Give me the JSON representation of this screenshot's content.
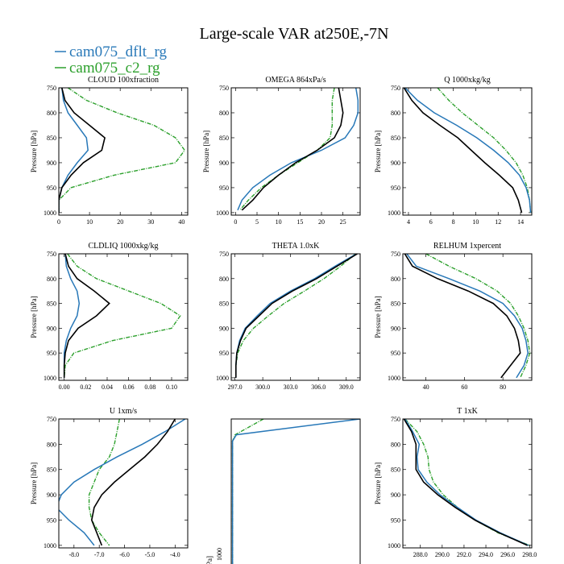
{
  "figure": {
    "title": "Large-scale VAR at250E,-7N",
    "legend": [
      {
        "label": "cam075_dflt_rg",
        "color": "#2878b8"
      },
      {
        "label": "cam075_c2_rg",
        "color": "#2ca02c"
      }
    ],
    "colors": {
      "black": "#000000",
      "blue": "#2878b8",
      "green": "#2ca02c"
    }
  },
  "chart_data": [
    {
      "type": "line",
      "title": "CLOUD  100xfraction",
      "ylabel": "Pressure [hPa]",
      "ylim": [
        750,
        1005
      ],
      "yticks": [
        750,
        800,
        850,
        900,
        950,
        1000
      ],
      "xlim": [
        0,
        42
      ],
      "xticks": [
        0,
        10,
        20,
        30,
        40
      ],
      "xticklabels": [
        "0",
        "10",
        "20",
        "30",
        "40"
      ],
      "y": [
        750,
        775,
        800,
        825,
        850,
        875,
        900,
        925,
        950,
        975,
        1000
      ],
      "series": [
        {
          "color": "black",
          "values": [
            1,
            2,
            5,
            10,
            15,
            14,
            8,
            4,
            1,
            0,
            0
          ]
        },
        {
          "color": "blue",
          "values": [
            1,
            1.5,
            3,
            6,
            9,
            9.5,
            6,
            3,
            1,
            0,
            0
          ]
        },
        {
          "color": "green",
          "values": [
            3,
            9,
            19,
            31,
            38,
            41,
            38,
            18,
            4,
            0,
            0
          ]
        }
      ]
    },
    {
      "type": "line",
      "title": "OMEGA  864xPa/s",
      "ylabel": "Pressure [hPa]",
      "ylim": [
        750,
        1005
      ],
      "yticks": [
        750,
        800,
        850,
        900,
        950,
        1000
      ],
      "xlim": [
        -1,
        29
      ],
      "xticks": [
        0,
        5,
        10,
        15,
        20,
        25
      ],
      "xticklabels": [
        "0",
        "5",
        "10",
        "15",
        "20",
        "25"
      ],
      "y": [
        750,
        775,
        800,
        825,
        850,
        875,
        900,
        925,
        950,
        975,
        995
      ],
      "series": [
        {
          "color": "black",
          "values": [
            24,
            24.5,
            25,
            24.5,
            23,
            19,
            14,
            10,
            6.5,
            4,
            1.5
          ]
        },
        {
          "color": "blue",
          "values": [
            28,
            28.5,
            28.5,
            27.5,
            25.5,
            20,
            13,
            8,
            4,
            1.5,
            0.5
          ]
        },
        {
          "color": "green",
          "values": [
            23,
            22.5,
            22.5,
            22.5,
            22,
            19,
            14.5,
            10,
            6,
            3,
            1
          ]
        }
      ]
    },
    {
      "type": "line",
      "title": "Q  1000xkg/kg",
      "ylabel": "Pressure [hPa]",
      "ylim": [
        750,
        1005
      ],
      "yticks": [
        750,
        800,
        850,
        900,
        950,
        1000
      ],
      "xlim": [
        3.5,
        15
      ],
      "xticks": [
        4,
        6,
        8,
        10,
        12,
        14
      ],
      "xticklabels": [
        "4",
        "6",
        "8",
        "10",
        "12",
        "14"
      ],
      "y": [
        750,
        775,
        800,
        825,
        850,
        875,
        900,
        925,
        950,
        975,
        1000
      ],
      "series": [
        {
          "color": "black",
          "values": [
            3.6,
            4.3,
            5.3,
            6.8,
            8.4,
            9.6,
            10.8,
            12.1,
            13.3,
            13.8,
            14.1
          ]
        },
        {
          "color": "blue",
          "values": [
            3.7,
            4.8,
            6.3,
            8.3,
            10.1,
            11.6,
            12.9,
            13.9,
            14.5,
            14.8,
            14.9
          ]
        },
        {
          "color": "green",
          "values": [
            6.6,
            7.6,
            8.8,
            10.2,
            11.6,
            12.7,
            13.6,
            14.2,
            14.6,
            14.8,
            14.9
          ]
        }
      ]
    },
    {
      "type": "line",
      "title": "CLDLIQ  1000xkg/kg",
      "ylabel": "Pressure [hPa]",
      "ylim": [
        750,
        1005
      ],
      "yticks": [
        750,
        800,
        850,
        900,
        950,
        1000
      ],
      "xlim": [
        -0.005,
        0.115
      ],
      "xticks": [
        0,
        0.02,
        0.04,
        0.06,
        0.08,
        0.1
      ],
      "xticklabels": [
        "0.00",
        "0.02",
        "0.04",
        "0.06",
        "0.08",
        "0.10"
      ],
      "y": [
        750,
        775,
        800,
        825,
        850,
        875,
        900,
        925,
        950,
        975,
        1000
      ],
      "series": [
        {
          "color": "black",
          "values": [
            0.001,
            0.004,
            0.012,
            0.028,
            0.042,
            0.03,
            0.013,
            0.004,
            0.001,
            0,
            0
          ]
        },
        {
          "color": "blue",
          "values": [
            0.001,
            0.002,
            0.006,
            0.012,
            0.014,
            0.012,
            0.006,
            0.002,
            0,
            0,
            0
          ]
        },
        {
          "color": "green",
          "values": [
            0.003,
            0.012,
            0.03,
            0.06,
            0.09,
            0.108,
            0.1,
            0.045,
            0.009,
            0.001,
            0
          ]
        }
      ]
    },
    {
      "type": "line",
      "title": "THETA  1.0xK",
      "ylabel": "",
      "ylim": [
        750,
        1005
      ],
      "yticks": [
        750,
        800,
        850,
        900,
        950,
        1000
      ],
      "xlim": [
        296.6,
        310.5
      ],
      "xticks": [
        297,
        300,
        303,
        306,
        309
      ],
      "xticklabels": [
        "297.0",
        "300.0",
        "303.0",
        "306.0",
        "309.0"
      ],
      "y": [
        750,
        775,
        800,
        825,
        850,
        875,
        900,
        925,
        950,
        975,
        1000
      ],
      "series": [
        {
          "color": "black",
          "values": [
            310.2,
            308,
            305.8,
            303.2,
            301,
            299.6,
            298.2,
            297.6,
            297.2,
            297.1,
            297.1
          ]
        },
        {
          "color": "blue",
          "values": [
            310.1,
            307.8,
            305.6,
            303,
            300.8,
            299.4,
            298.1,
            297.5,
            297.2,
            297.1,
            297.1
          ]
        },
        {
          "color": "green",
          "values": [
            310,
            308.4,
            306.6,
            304.5,
            302.3,
            300.6,
            299,
            297.9,
            297.3,
            297.1,
            297.1
          ]
        }
      ]
    },
    {
      "type": "line",
      "title": "RELHUM  1xpercent",
      "ylabel": "Pressure [hPa]",
      "ylim": [
        750,
        1005
      ],
      "yticks": [
        750,
        800,
        850,
        900,
        950,
        1000
      ],
      "xlim": [
        28,
        95
      ],
      "xticks": [
        40,
        60,
        80
      ],
      "xticklabels": [
        "40",
        "60",
        "80"
      ],
      "y": [
        750,
        775,
        800,
        825,
        850,
        875,
        900,
        925,
        950,
        975,
        1000
      ],
      "series": [
        {
          "color": "black",
          "values": [
            29,
            33,
            46,
            62,
            75,
            82,
            86,
            88,
            89,
            84,
            79
          ]
        },
        {
          "color": "blue",
          "values": [
            30,
            35,
            52,
            68,
            80,
            86,
            90,
            92,
            93,
            91,
            87
          ]
        },
        {
          "color": "green",
          "values": [
            40,
            52,
            66,
            77,
            84,
            88,
            91,
            93,
            94,
            92,
            89
          ]
        }
      ]
    },
    {
      "type": "line",
      "title": "U  1xm/s",
      "ylabel": "Pressure [hPa]",
      "ylim": [
        750,
        1005
      ],
      "yticks": [
        750,
        800,
        850,
        900,
        950,
        1000
      ],
      "xlim": [
        -8.6,
        -3.5
      ],
      "xticks": [
        -8,
        -7,
        -6,
        -5,
        -4
      ],
      "xticklabels": [
        "-8.0",
        "-7.0",
        "-6.0",
        "-5.0",
        "-4.0"
      ],
      "y": [
        750,
        775,
        800,
        825,
        850,
        875,
        900,
        925,
        950,
        975,
        1000
      ],
      "series": [
        {
          "color": "black",
          "values": [
            -4,
            -4.3,
            -4.7,
            -5.2,
            -5.8,
            -6.4,
            -6.9,
            -7.2,
            -7.3,
            -7.1,
            -6.9
          ]
        },
        {
          "color": "blue",
          "values": [
            -3.6,
            -4.4,
            -5.3,
            -6.3,
            -7.2,
            -8,
            -8.5,
            -8.7,
            -8.2,
            -7.6,
            -7.2
          ]
        },
        {
          "color": "green",
          "values": [
            -6.2,
            -6.3,
            -6.4,
            -6.6,
            -7,
            -7.2,
            -7.4,
            -7.4,
            -7.3,
            -7,
            -6.6
          ]
        }
      ]
    },
    {
      "type": "line",
      "title": "",
      "ylabel": "e [hPa]",
      "ylim": [
        750,
        1005
      ],
      "xlim": [
        0,
        1
      ],
      "y": [
        750,
        775,
        785,
        1005
      ],
      "series": [
        {
          "color": "blue",
          "values": [
            1,
            0.04,
            0.01,
            0.01
          ]
        },
        {
          "color": "green",
          "values": [
            0.25,
            0.03,
            0.01,
            0.01
          ]
        }
      ],
      "cropped_tick_label": "1000"
    },
    {
      "type": "line",
      "title": "T  1xK",
      "ylabel": "Pressure [hPa]",
      "ylim": [
        750,
        1005
      ],
      "yticks": [
        750,
        800,
        850,
        900,
        950,
        1000
      ],
      "xlim": [
        286.4,
        298.2
      ],
      "xticks": [
        288,
        290,
        292,
        294,
        296,
        298
      ],
      "xticklabels": [
        "288.0",
        "290.0",
        "292.0",
        "294.0",
        "296.0",
        "298.0"
      ],
      "y": [
        750,
        775,
        800,
        825,
        850,
        875,
        900,
        925,
        950,
        975,
        1000
      ],
      "series": [
        {
          "color": "black",
          "values": [
            286.5,
            287.2,
            287.6,
            287.6,
            287.6,
            288.3,
            289.6,
            291.2,
            293,
            295.2,
            297.8
          ]
        },
        {
          "color": "blue",
          "values": [
            286.6,
            287.3,
            287.9,
            287.7,
            287.8,
            288.6,
            289.8,
            291.4,
            293.1,
            295.3,
            297.9
          ]
        },
        {
          "color": "green",
          "values": [
            286.6,
            287.7,
            288.3,
            288.7,
            288.8,
            289.2,
            290.1,
            291.4,
            293,
            295.1,
            298
          ]
        }
      ]
    }
  ]
}
